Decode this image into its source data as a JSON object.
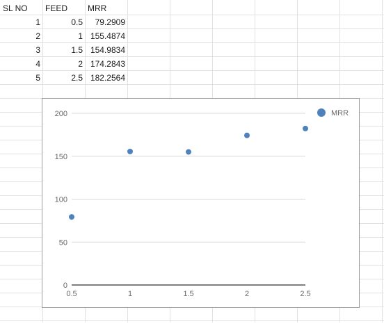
{
  "sheet": {
    "headers": [
      "SL NO",
      "FEED",
      "MRR"
    ],
    "rows": [
      {
        "sl": "1",
        "feed": "0.5",
        "mrr": "79.2909"
      },
      {
        "sl": "2",
        "feed": "1",
        "mrr": "155.4874"
      },
      {
        "sl": "3",
        "feed": "1.5",
        "mrr": "154.9834"
      },
      {
        "sl": "4",
        "feed": "2",
        "mrr": "174.2843"
      },
      {
        "sl": "5",
        "feed": "2.5",
        "mrr": "182.2564"
      }
    ]
  },
  "colors": {
    "grid": "#d9d9d9",
    "marker": "#4f81bd",
    "axis": "#333333"
  },
  "chart_data": {
    "type": "scatter",
    "title": "",
    "xlabel": "",
    "ylabel": "",
    "series": [
      {
        "name": "MRR",
        "x": [
          0.5,
          1,
          1.5,
          2,
          2.5
        ],
        "values": [
          79.2909,
          155.4874,
          154.9834,
          174.2843,
          182.2564
        ]
      }
    ],
    "xlim": [
      0.5,
      2.5
    ],
    "ylim": [
      0,
      200
    ],
    "xticks": [
      "0.5",
      "1",
      "1.5",
      "2",
      "2.5"
    ],
    "yticks": [
      "0",
      "50",
      "100",
      "150",
      "200"
    ],
    "legend": {
      "position": "top-right",
      "entries": [
        "MRR"
      ]
    },
    "grid": true
  }
}
